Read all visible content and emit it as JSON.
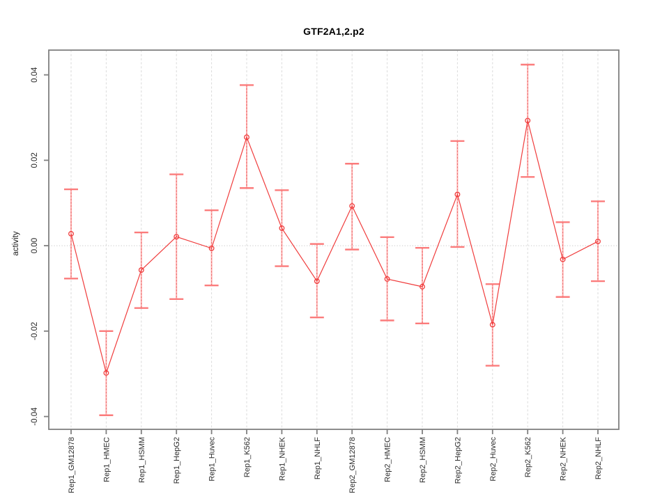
{
  "page": {
    "title": "GTF2A1,2.p2"
  },
  "chart_data": {
    "type": "line",
    "title": "GTF2A1,2.p2",
    "xlabel": "",
    "ylabel": "activity",
    "ylim": [
      -0.043,
      0.0458
    ],
    "grid": {
      "vertical": "dashed line at every category tick",
      "horizontal": "dotted line at y = 0 only"
    },
    "legend": "none",
    "marker": "open-circle",
    "error_bars": true,
    "yticks": [
      {
        "value": 0.04,
        "label": "0.04"
      },
      {
        "value": 0.02,
        "label": "0.02"
      },
      {
        "value": 0.0,
        "label": "0.00"
      },
      {
        "value": -0.02,
        "label": "-0.02"
      },
      {
        "value": -0.04,
        "label": "-0.04"
      }
    ],
    "categories": [
      "Rep1_GM12878",
      "Rep1_HMEC",
      "Rep1_HSMM",
      "Rep1_HepG2",
      "Rep1_Huvec",
      "Rep1_K562",
      "Rep1_NHEK",
      "Rep1_NHLF",
      "Rep2_GM12878",
      "Rep2_HMEC",
      "Rep2_HSMM",
      "Rep2_HepG2",
      "Rep2_Huvec",
      "Rep2_K562",
      "Rep2_NHEK",
      "Rep2_NHLF"
    ],
    "series": [
      {
        "name": "activity",
        "values": [
          0.0028,
          -0.0298,
          -0.0057,
          0.0021,
          -0.0006,
          0.0254,
          0.0041,
          -0.0083,
          0.0093,
          -0.0078,
          -0.0096,
          0.012,
          -0.0185,
          0.0293,
          -0.0032,
          0.001
        ],
        "upper": [
          0.0132,
          -0.02,
          0.0031,
          0.0167,
          0.0083,
          0.0376,
          0.013,
          0.0004,
          0.0192,
          0.002,
          -0.0005,
          0.0245,
          -0.009,
          0.0424,
          0.0055,
          0.0104
        ],
        "lower": [
          -0.0077,
          -0.0397,
          -0.0146,
          -0.0125,
          -0.0093,
          0.0135,
          -0.0048,
          -0.0168,
          -0.0009,
          -0.0175,
          -0.0182,
          -0.0003,
          -0.0281,
          0.0161,
          -0.012,
          -0.0083
        ]
      }
    ],
    "colors": {
      "line": "#f03c3c",
      "marker": "#f03c3c",
      "error_bar": "#ffafaf",
      "error_bar_cap": "#fb7b7b",
      "error_bar_core_dash": "#e25555",
      "grid": "#dadada",
      "zero_line": "#c9c9c9",
      "axis_box": "#808080",
      "tick": "#808080",
      "tick_label": "#2b2b2b",
      "background": "#ffffff"
    }
  }
}
